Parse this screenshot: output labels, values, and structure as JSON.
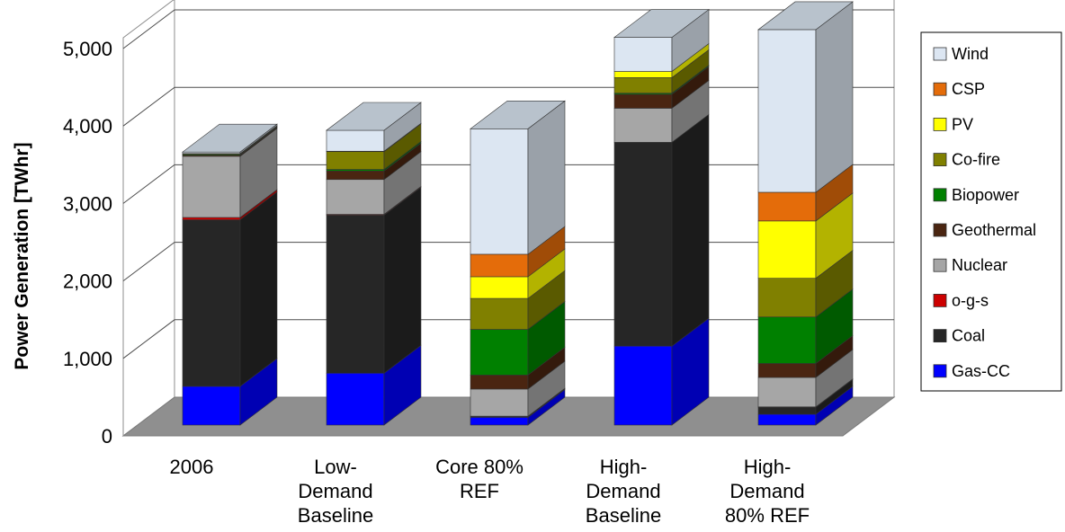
{
  "chart_data": {
    "type": "bar",
    "stacked": true,
    "style": "3d-stacked-column",
    "title": "",
    "xlabel": "",
    "ylabel": "Power Generation [TWhr]",
    "ylim": [
      0,
      5000
    ],
    "yticks": [
      "0",
      "1,000",
      "2,000",
      "3,000",
      "4,000",
      "5,000"
    ],
    "grid": true,
    "legend_position": "right",
    "categories": [
      [
        "2006"
      ],
      [
        "Low-",
        "Demand",
        "Baseline"
      ],
      [
        "Core 80%",
        "REF"
      ],
      [
        "High-",
        "Demand",
        "Baseline"
      ],
      [
        "High-",
        "Demand",
        "80% REF"
      ]
    ],
    "series": [
      {
        "name": "Gas-CC",
        "color": "#0000FF",
        "values": [
          500,
          670,
          100,
          1020,
          140
        ]
      },
      {
        "name": "Coal",
        "color": "#262626",
        "values": [
          2150,
          2040,
          10,
          2630,
          90
        ]
      },
      {
        "name": "o-g-s",
        "color": "#CC0000",
        "values": [
          30,
          10,
          5,
          0,
          5
        ]
      },
      {
        "name": "Nuclear",
        "color": "#A6A6A6",
        "values": [
          790,
          450,
          350,
          440,
          380
        ]
      },
      {
        "name": "Geothermal",
        "color": "#4A2511",
        "values": [
          15,
          110,
          180,
          180,
          180
        ]
      },
      {
        "name": "Biopower",
        "color": "#008000",
        "values": [
          10,
          20,
          590,
          15,
          600
        ]
      },
      {
        "name": "Co-fire",
        "color": "#808000",
        "values": [
          10,
          230,
          400,
          200,
          500
        ]
      },
      {
        "name": "PV",
        "color": "#FFFF00",
        "values": [
          0,
          5,
          280,
          80,
          740
        ]
      },
      {
        "name": "CSP",
        "color": "#E46C0A",
        "values": [
          0,
          0,
          290,
          0,
          370
        ]
      },
      {
        "name": "Wind",
        "color": "#DCE6F2",
        "values": [
          20,
          270,
          1620,
          440,
          2100
        ]
      }
    ]
  }
}
